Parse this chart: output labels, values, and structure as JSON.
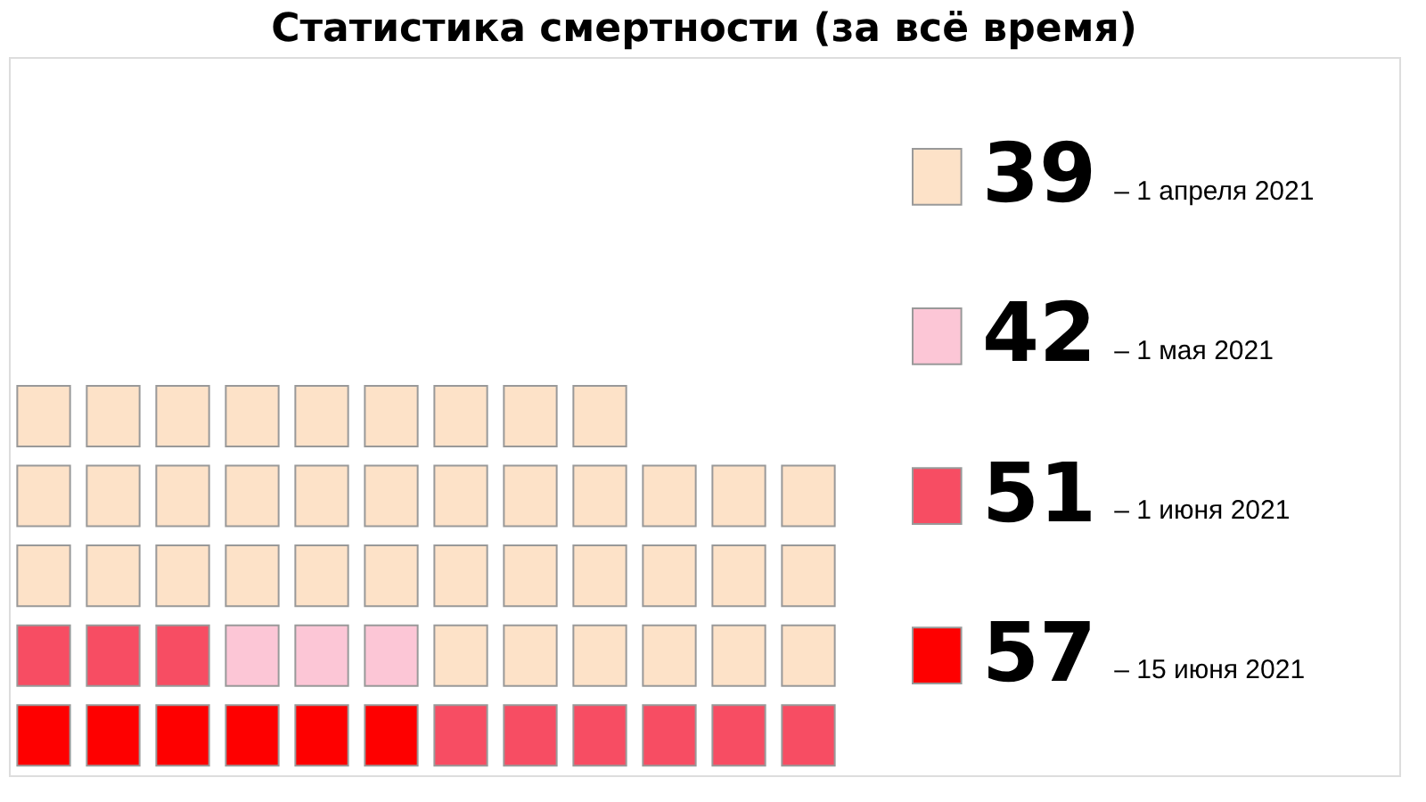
{
  "chart_data": {
    "type": "other",
    "title": "Статистика смертности (за всё время)",
    "categories": [
      "– 1 апреля 2021",
      "– 1 мая 2021",
      "– 1 июня 2021",
      "– 15 июня 2021"
    ],
    "values": [
      39,
      42,
      51,
      57
    ],
    "colors": [
      "#fde2c8",
      "#fcc6d6",
      "#f74d63",
      "#fe0000"
    ],
    "data_labels": true
  }
}
